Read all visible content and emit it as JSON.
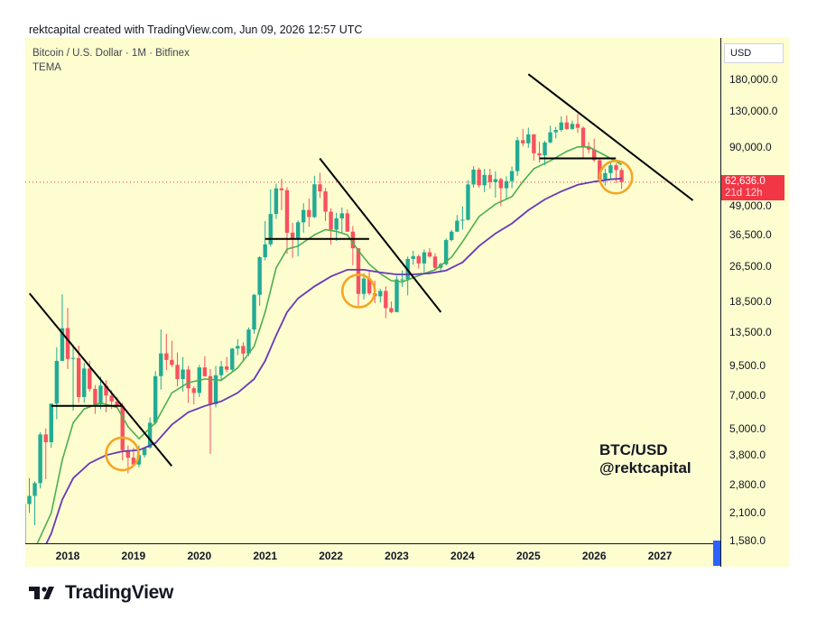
{
  "header": {
    "text": "rektcapital created with TradingView.com, Jun 09, 2026 12:57 UTC"
  },
  "legend": {
    "symbol": "Bitcoin / U.S. Dollar · 1M · Bitfinex",
    "study": "TEMA"
  },
  "price_axis": {
    "currency": "USD"
  },
  "last_price": {
    "value": "62,636.0",
    "countdown": "21d 12h"
  },
  "watermark": {
    "line1": "BTC/USD",
    "line2": "@rektcapital"
  },
  "brand": {
    "name": "TradingView"
  },
  "chart_data": {
    "type": "candlestick",
    "scale": "log",
    "y_ticks": [
      1580,
      2100,
      2800,
      3800,
      5000,
      7000,
      9500,
      13500,
      18500,
      26500,
      36500,
      49000,
      62636,
      90000,
      130000,
      180000
    ],
    "y_tick_labels": [
      "1,580.0",
      "2,100.0",
      "2,800.0",
      "3,800.0",
      "5,000.0",
      "7,000.0",
      "9,500.0",
      "13,500.0",
      "18,500.0",
      "26,500.0",
      "36,500.0",
      "49,000.0",
      "62,636.0",
      "90,000.0",
      "130,000.0",
      "180,000.0"
    ],
    "x_ticks": [
      2018,
      2019,
      2020,
      2021,
      2022,
      2023,
      2024,
      2025,
      2026,
      2027
    ],
    "x_tick_labels": [
      "2018",
      "2019",
      "2020",
      "2021",
      "2022",
      "2023",
      "2024",
      "2025",
      "2026",
      "2027"
    ],
    "colors": {
      "up": "#22ab94",
      "down": "#f7525f",
      "ema_fast": "#4caf50",
      "ema_slow": "#673ab7",
      "trendline": "#000000",
      "highlight": "#f5a623",
      "last_price": "#f23645"
    },
    "candles": [
      {
        "t": 2017.333,
        "o": 1350,
        "h": 2650,
        "l": 1350,
        "c": 2300
      },
      {
        "t": 2017.417,
        "o": 2300,
        "h": 3000,
        "l": 2100,
        "c": 2500
      },
      {
        "t": 2017.5,
        "o": 2500,
        "h": 2900,
        "l": 1850,
        "c": 2850
      },
      {
        "t": 2017.583,
        "o": 2850,
        "h": 4800,
        "l": 2700,
        "c": 4700
      },
      {
        "t": 2017.667,
        "o": 4700,
        "h": 5000,
        "l": 2970,
        "c": 4340
      },
      {
        "t": 2017.75,
        "o": 4340,
        "h": 6400,
        "l": 4100,
        "c": 6450
      },
      {
        "t": 2017.833,
        "o": 6450,
        "h": 11500,
        "l": 5500,
        "c": 10000
      },
      {
        "t": 2017.917,
        "o": 10000,
        "h": 19800,
        "l": 10000,
        "c": 14000
      },
      {
        "t": 2018.0,
        "o": 14000,
        "h": 17200,
        "l": 9200,
        "c": 10200
      },
      {
        "t": 2018.083,
        "o": 10200,
        "h": 11800,
        "l": 6000,
        "c": 10300
      },
      {
        "t": 2018.167,
        "o": 10300,
        "h": 11700,
        "l": 6500,
        "c": 6900
      },
      {
        "t": 2018.25,
        "o": 6900,
        "h": 9800,
        "l": 6500,
        "c": 9250
      },
      {
        "t": 2018.333,
        "o": 9250,
        "h": 10000,
        "l": 7300,
        "c": 7500
      },
      {
        "t": 2018.417,
        "o": 7500,
        "h": 7800,
        "l": 5800,
        "c": 6400
      },
      {
        "t": 2018.5,
        "o": 6400,
        "h": 8500,
        "l": 6100,
        "c": 7750
      },
      {
        "t": 2018.583,
        "o": 7750,
        "h": 8200,
        "l": 5900,
        "c": 7000
      },
      {
        "t": 2018.667,
        "o": 7000,
        "h": 7400,
        "l": 6100,
        "c": 6600
      },
      {
        "t": 2018.75,
        "o": 6600,
        "h": 6900,
        "l": 6200,
        "c": 6300
      },
      {
        "t": 2018.833,
        "o": 6300,
        "h": 6500,
        "l": 3600,
        "c": 4000
      },
      {
        "t": 2018.917,
        "o": 4000,
        "h": 4200,
        "l": 3150,
        "c": 3700
      },
      {
        "t": 2019.0,
        "o": 3700,
        "h": 4100,
        "l": 3400,
        "c": 3450
      },
      {
        "t": 2019.083,
        "o": 3450,
        "h": 4200,
        "l": 3350,
        "c": 3800
      },
      {
        "t": 2019.167,
        "o": 3800,
        "h": 4100,
        "l": 3700,
        "c": 4100
      },
      {
        "t": 2019.25,
        "o": 4100,
        "h": 5600,
        "l": 4050,
        "c": 5300
      },
      {
        "t": 2019.333,
        "o": 5300,
        "h": 9000,
        "l": 5200,
        "c": 8550
      },
      {
        "t": 2019.417,
        "o": 8550,
        "h": 13800,
        "l": 7450,
        "c": 10800
      },
      {
        "t": 2019.5,
        "o": 10800,
        "h": 13200,
        "l": 9100,
        "c": 10100
      },
      {
        "t": 2019.583,
        "o": 10100,
        "h": 12300,
        "l": 9400,
        "c": 9600
      },
      {
        "t": 2019.667,
        "o": 9600,
        "h": 10900,
        "l": 7700,
        "c": 8300
      },
      {
        "t": 2019.75,
        "o": 8300,
        "h": 10400,
        "l": 7300,
        "c": 9150
      },
      {
        "t": 2019.833,
        "o": 9150,
        "h": 9500,
        "l": 6500,
        "c": 7550
      },
      {
        "t": 2019.917,
        "o": 7550,
        "h": 7700,
        "l": 6400,
        "c": 7200
      },
      {
        "t": 2020.0,
        "o": 7200,
        "h": 9600,
        "l": 6900,
        "c": 9350
      },
      {
        "t": 2020.083,
        "o": 9350,
        "h": 10500,
        "l": 8500,
        "c": 8550
      },
      {
        "t": 2020.167,
        "o": 8550,
        "h": 9200,
        "l": 3850,
        "c": 6420
      },
      {
        "t": 2020.25,
        "o": 6420,
        "h": 9500,
        "l": 6200,
        "c": 8630
      },
      {
        "t": 2020.333,
        "o": 8630,
        "h": 10000,
        "l": 8100,
        "c": 9450
      },
      {
        "t": 2020.417,
        "o": 9450,
        "h": 10400,
        "l": 8900,
        "c": 9140
      },
      {
        "t": 2020.5,
        "o": 9140,
        "h": 11400,
        "l": 8900,
        "c": 11350
      },
      {
        "t": 2020.583,
        "o": 11350,
        "h": 12500,
        "l": 10600,
        "c": 11650
      },
      {
        "t": 2020.667,
        "o": 11650,
        "h": 12100,
        "l": 9900,
        "c": 10780
      },
      {
        "t": 2020.75,
        "o": 10780,
        "h": 14100,
        "l": 10500,
        "c": 13800
      },
      {
        "t": 2020.833,
        "o": 13800,
        "h": 19900,
        "l": 13200,
        "c": 19700
      },
      {
        "t": 2020.917,
        "o": 19700,
        "h": 29300,
        "l": 17600,
        "c": 29000
      },
      {
        "t": 2021.0,
        "o": 29000,
        "h": 42000,
        "l": 28100,
        "c": 33100
      },
      {
        "t": 2021.083,
        "o": 33100,
        "h": 58300,
        "l": 32300,
        "c": 45200
      },
      {
        "t": 2021.167,
        "o": 45200,
        "h": 61700,
        "l": 43000,
        "c": 58800
      },
      {
        "t": 2021.25,
        "o": 58800,
        "h": 64800,
        "l": 47000,
        "c": 57700
      },
      {
        "t": 2021.333,
        "o": 57700,
        "h": 59500,
        "l": 30000,
        "c": 37300
      },
      {
        "t": 2021.417,
        "o": 37300,
        "h": 41300,
        "l": 28800,
        "c": 35000
      },
      {
        "t": 2021.5,
        "o": 35000,
        "h": 42300,
        "l": 29300,
        "c": 41500
      },
      {
        "t": 2021.583,
        "o": 41500,
        "h": 50500,
        "l": 37300,
        "c": 47100
      },
      {
        "t": 2021.667,
        "o": 47100,
        "h": 52900,
        "l": 39600,
        "c": 43800
      },
      {
        "t": 2021.75,
        "o": 43800,
        "h": 66900,
        "l": 43300,
        "c": 61300
      },
      {
        "t": 2021.833,
        "o": 61300,
        "h": 69000,
        "l": 53300,
        "c": 57000
      },
      {
        "t": 2021.917,
        "o": 57000,
        "h": 59100,
        "l": 42000,
        "c": 46300
      },
      {
        "t": 2022.0,
        "o": 46300,
        "h": 47900,
        "l": 33000,
        "c": 38500
      },
      {
        "t": 2022.083,
        "o": 38500,
        "h": 45800,
        "l": 34300,
        "c": 43200
      },
      {
        "t": 2022.167,
        "o": 43200,
        "h": 48200,
        "l": 37200,
        "c": 45500
      },
      {
        "t": 2022.25,
        "o": 45500,
        "h": 47400,
        "l": 37600,
        "c": 37700
      },
      {
        "t": 2022.333,
        "o": 37700,
        "h": 40000,
        "l": 26700,
        "c": 31800
      },
      {
        "t": 2022.417,
        "o": 31800,
        "h": 31900,
        "l": 17600,
        "c": 19900
      },
      {
        "t": 2022.5,
        "o": 19900,
        "h": 24600,
        "l": 18800,
        "c": 23300
      },
      {
        "t": 2022.583,
        "o": 23300,
        "h": 25200,
        "l": 19600,
        "c": 20000
      },
      {
        "t": 2022.667,
        "o": 20000,
        "h": 22800,
        "l": 18100,
        "c": 19400
      },
      {
        "t": 2022.75,
        "o": 19400,
        "h": 21000,
        "l": 18200,
        "c": 20500
      },
      {
        "t": 2022.833,
        "o": 20500,
        "h": 21500,
        "l": 15500,
        "c": 17200
      },
      {
        "t": 2022.917,
        "o": 17200,
        "h": 18400,
        "l": 16300,
        "c": 16500
      },
      {
        "t": 2023.0,
        "o": 16500,
        "h": 23900,
        "l": 16500,
        "c": 23100
      },
      {
        "t": 2023.083,
        "o": 23100,
        "h": 25300,
        "l": 21400,
        "c": 23100
      },
      {
        "t": 2023.167,
        "o": 23100,
        "h": 29200,
        "l": 19600,
        "c": 28500
      },
      {
        "t": 2023.25,
        "o": 28500,
        "h": 31000,
        "l": 26900,
        "c": 29300
      },
      {
        "t": 2023.333,
        "o": 29300,
        "h": 29800,
        "l": 25800,
        "c": 27200
      },
      {
        "t": 2023.417,
        "o": 27200,
        "h": 31400,
        "l": 24800,
        "c": 30500
      },
      {
        "t": 2023.5,
        "o": 30500,
        "h": 31800,
        "l": 28900,
        "c": 29200
      },
      {
        "t": 2023.583,
        "o": 29200,
        "h": 30200,
        "l": 25300,
        "c": 26000
      },
      {
        "t": 2023.667,
        "o": 26000,
        "h": 27400,
        "l": 24900,
        "c": 27000
      },
      {
        "t": 2023.75,
        "o": 27000,
        "h": 35200,
        "l": 26600,
        "c": 34600
      },
      {
        "t": 2023.833,
        "o": 34600,
        "h": 38400,
        "l": 34100,
        "c": 37700
      },
      {
        "t": 2023.917,
        "o": 37700,
        "h": 44700,
        "l": 37600,
        "c": 42200
      },
      {
        "t": 2024.0,
        "o": 42200,
        "h": 48900,
        "l": 38500,
        "c": 42600
      },
      {
        "t": 2024.083,
        "o": 42600,
        "h": 63900,
        "l": 42300,
        "c": 61200
      },
      {
        "t": 2024.167,
        "o": 61200,
        "h": 73800,
        "l": 59300,
        "c": 71300
      },
      {
        "t": 2024.25,
        "o": 71300,
        "h": 72800,
        "l": 59200,
        "c": 60700
      },
      {
        "t": 2024.333,
        "o": 60700,
        "h": 71900,
        "l": 56600,
        "c": 67500
      },
      {
        "t": 2024.417,
        "o": 67500,
        "h": 71900,
        "l": 58600,
        "c": 62700
      },
      {
        "t": 2024.5,
        "o": 62700,
        "h": 70000,
        "l": 53500,
        "c": 64600
      },
      {
        "t": 2024.583,
        "o": 64600,
        "h": 65600,
        "l": 49000,
        "c": 58900
      },
      {
        "t": 2024.667,
        "o": 58900,
        "h": 66500,
        "l": 52600,
        "c": 63300
      },
      {
        "t": 2024.75,
        "o": 63300,
        "h": 73600,
        "l": 58900,
        "c": 70200
      },
      {
        "t": 2024.833,
        "o": 70200,
        "h": 99800,
        "l": 66800,
        "c": 96400
      },
      {
        "t": 2024.917,
        "o": 96400,
        "h": 108300,
        "l": 90500,
        "c": 93400
      },
      {
        "t": 2025.0,
        "o": 93400,
        "h": 109600,
        "l": 89200,
        "c": 102400
      },
      {
        "t": 2025.083,
        "o": 102400,
        "h": 102500,
        "l": 78200,
        "c": 84300
      },
      {
        "t": 2025.167,
        "o": 84300,
        "h": 95000,
        "l": 76600,
        "c": 82500
      },
      {
        "t": 2025.25,
        "o": 82500,
        "h": 95700,
        "l": 74500,
        "c": 94200
      },
      {
        "t": 2025.333,
        "o": 94200,
        "h": 111900,
        "l": 93400,
        "c": 104600
      },
      {
        "t": 2025.417,
        "o": 104600,
        "h": 110500,
        "l": 98200,
        "c": 107100
      },
      {
        "t": 2025.5,
        "o": 107100,
        "h": 123200,
        "l": 105100,
        "c": 115700
      },
      {
        "t": 2025.583,
        "o": 115700,
        "h": 124400,
        "l": 107300,
        "c": 108200
      },
      {
        "t": 2025.667,
        "o": 108200,
        "h": 117900,
        "l": 107300,
        "c": 114000
      },
      {
        "t": 2025.75,
        "o": 114000,
        "h": 126200,
        "l": 104000,
        "c": 109500
      },
      {
        "t": 2025.833,
        "o": 109500,
        "h": 111200,
        "l": 80600,
        "c": 90400
      },
      {
        "t": 2025.917,
        "o": 90400,
        "h": 94600,
        "l": 84400,
        "c": 87600
      },
      {
        "t": 2026.0,
        "o": 87600,
        "h": 98000,
        "l": 77000,
        "c": 78500
      },
      {
        "t": 2026.083,
        "o": 78500,
        "h": 80000,
        "l": 62000,
        "c": 64500
      },
      {
        "t": 2026.167,
        "o": 64500,
        "h": 72000,
        "l": 60500,
        "c": 68800
      },
      {
        "t": 2026.25,
        "o": 68800,
        "h": 76500,
        "l": 65000,
        "c": 74500
      },
      {
        "t": 2026.333,
        "o": 74500,
        "h": 76000,
        "l": 62000,
        "c": 71000
      },
      {
        "t": 2026.417,
        "o": 71000,
        "h": 72500,
        "l": 58500,
        "c": 62636
      }
    ],
    "ema_fast": [
      [
        2017.5,
        1450
      ],
      [
        2017.75,
        2100
      ],
      [
        2017.917,
        3600
      ],
      [
        2018.083,
        5300
      ],
      [
        2018.25,
        6100
      ],
      [
        2018.5,
        6500
      ],
      [
        2018.75,
        6200
      ],
      [
        2018.917,
        5100
      ],
      [
        2019.083,
        4500
      ],
      [
        2019.333,
        5300
      ],
      [
        2019.583,
        7200
      ],
      [
        2019.833,
        8000
      ],
      [
        2020.083,
        8300
      ],
      [
        2020.333,
        8200
      ],
      [
        2020.583,
        9300
      ],
      [
        2020.833,
        11600
      ],
      [
        2021.0,
        16500
      ],
      [
        2021.167,
        26000
      ],
      [
        2021.333,
        31500
      ],
      [
        2021.5,
        32500
      ],
      [
        2021.75,
        36500
      ],
      [
        2021.917,
        38500
      ],
      [
        2022.083,
        37800
      ],
      [
        2022.25,
        36500
      ],
      [
        2022.417,
        31000
      ],
      [
        2022.583,
        27000
      ],
      [
        2022.75,
        24500
      ],
      [
        2022.917,
        22800
      ],
      [
        2023.083,
        22500
      ],
      [
        2023.333,
        24000
      ],
      [
        2023.583,
        25500
      ],
      [
        2023.833,
        29000
      ],
      [
        2024.0,
        34000
      ],
      [
        2024.25,
        44000
      ],
      [
        2024.5,
        50000
      ],
      [
        2024.75,
        54000
      ],
      [
        2024.917,
        63000
      ],
      [
        2025.083,
        72000
      ],
      [
        2025.333,
        78000
      ],
      [
        2025.583,
        86000
      ],
      [
        2025.75,
        90000
      ],
      [
        2025.917,
        90000
      ],
      [
        2026.083,
        85000
      ],
      [
        2026.25,
        80000
      ],
      [
        2026.417,
        75000
      ]
    ],
    "ema_slow": [
      [
        2017.333,
        1100
      ],
      [
        2017.583,
        1350
      ],
      [
        2017.75,
        1700
      ],
      [
        2017.917,
        2400
      ],
      [
        2018.083,
        3000
      ],
      [
        2018.333,
        3500
      ],
      [
        2018.583,
        3800
      ],
      [
        2018.833,
        3950
      ],
      [
        2019.083,
        4000
      ],
      [
        2019.333,
        4300
      ],
      [
        2019.583,
        5200
      ],
      [
        2019.833,
        5900
      ],
      [
        2020.083,
        6300
      ],
      [
        2020.333,
        6600
      ],
      [
        2020.583,
        7200
      ],
      [
        2020.833,
        8300
      ],
      [
        2021.0,
        10000
      ],
      [
        2021.167,
        13000
      ],
      [
        2021.333,
        16500
      ],
      [
        2021.5,
        19000
      ],
      [
        2021.75,
        21500
      ],
      [
        2022.0,
        23800
      ],
      [
        2022.25,
        25500
      ],
      [
        2022.5,
        25500
      ],
      [
        2022.75,
        24800
      ],
      [
        2023.0,
        24300
      ],
      [
        2023.25,
        24300
      ],
      [
        2023.5,
        24600
      ],
      [
        2023.75,
        25300
      ],
      [
        2024.0,
        27500
      ],
      [
        2024.25,
        32500
      ],
      [
        2024.5,
        37000
      ],
      [
        2024.75,
        41000
      ],
      [
        2025.0,
        47000
      ],
      [
        2025.25,
        52500
      ],
      [
        2025.5,
        57000
      ],
      [
        2025.75,
        61000
      ],
      [
        2026.0,
        63000
      ],
      [
        2026.25,
        64500
      ],
      [
        2026.417,
        65000
      ]
    ],
    "trendlines": [
      [
        [
          2017.42,
          20000
        ],
        [
          2019.58,
          3400
        ]
      ],
      [
        [
          2021.83,
          80000
        ],
        [
          2023.67,
          16500
        ]
      ],
      [
        [
          2025.0,
          190000
        ],
        [
          2027.5,
          52000
        ]
      ]
    ],
    "horizontal_lines": [
      [
        [
          2017.75,
          6300
        ],
        [
          2018.83,
          6300
        ]
      ],
      [
        [
          2021.0,
          35000
        ],
        [
          2022.58,
          35000
        ]
      ],
      [
        [
          2025.17,
          80000
        ],
        [
          2026.33,
          80000
        ]
      ]
    ],
    "highlight_circles": [
      [
        2018.83,
        3850
      ],
      [
        2022.42,
        20500
      ],
      [
        2026.33,
        66000
      ]
    ]
  }
}
